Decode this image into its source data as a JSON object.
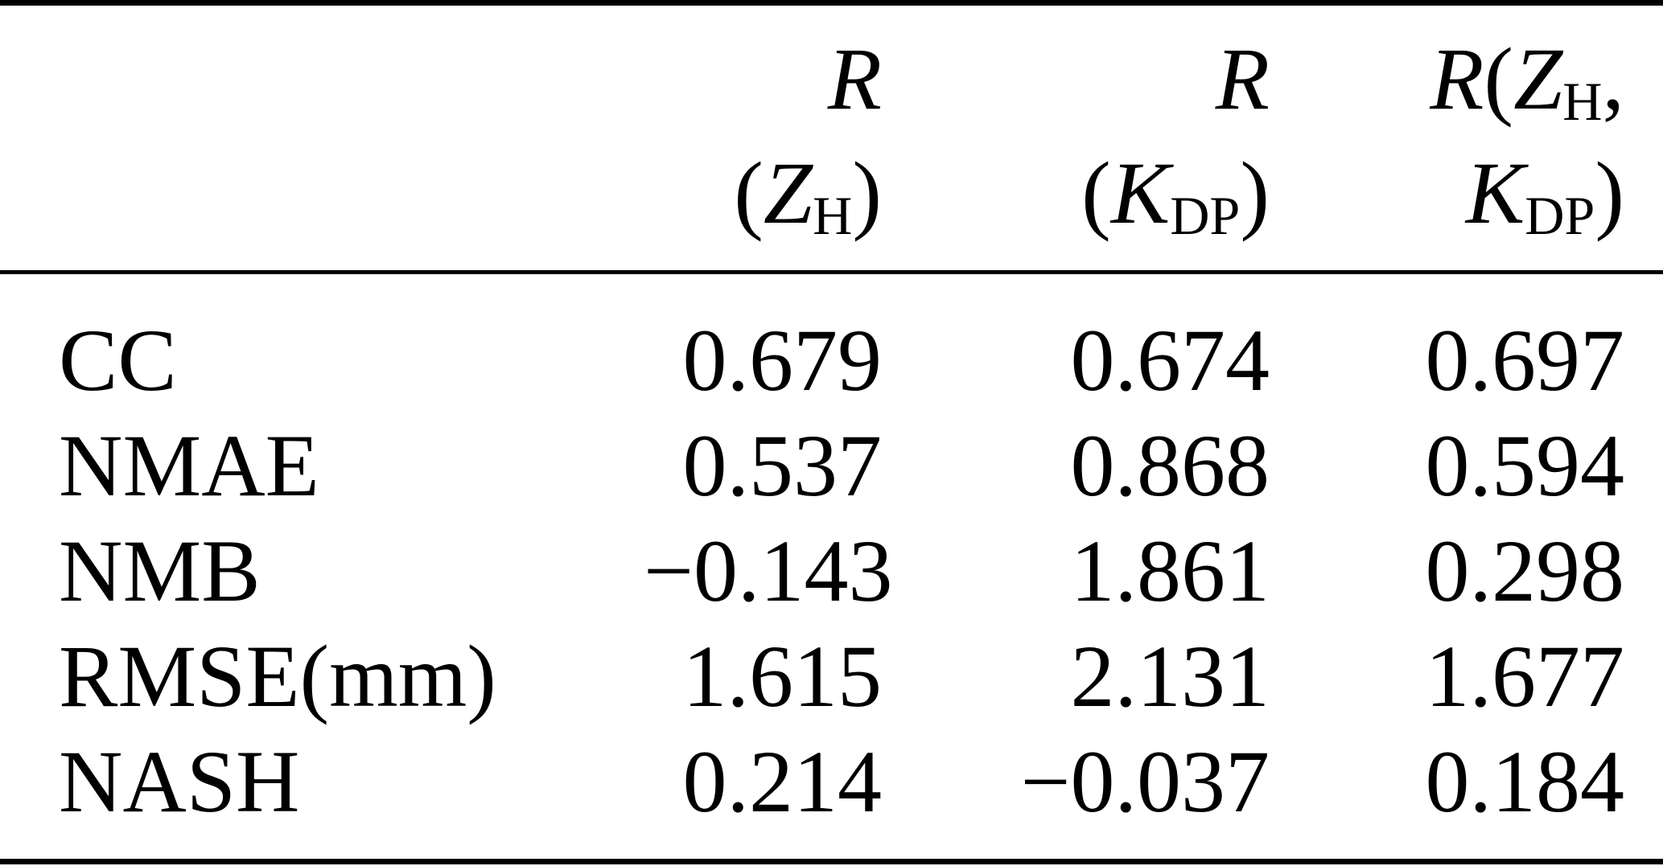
{
  "page": {
    "background_color": "#ffffff",
    "text_color": "#000000",
    "rule_color": "#000000"
  },
  "table": {
    "columns": [
      {
        "name": "R(ZH)",
        "line1": [
          {
            "t": "R",
            "s": "i"
          }
        ],
        "line2": [
          {
            "t": "("
          },
          {
            "t": "Z",
            "s": "i"
          },
          {
            "t": "H",
            "s": "sub"
          },
          {
            "t": ")"
          }
        ]
      },
      {
        "name": "R(KDP)",
        "line1": [
          {
            "t": "R",
            "s": "i"
          }
        ],
        "line2": [
          {
            "t": "("
          },
          {
            "t": "K",
            "s": "i"
          },
          {
            "t": "DP",
            "s": "sub"
          },
          {
            "t": ")"
          }
        ]
      },
      {
        "name": "R(ZH,KDP)",
        "line1": [
          {
            "t": "R",
            "s": "i"
          },
          {
            "t": "("
          },
          {
            "t": "Z",
            "s": "i"
          },
          {
            "t": "H",
            "s": "sub"
          },
          {
            "t": ","
          }
        ],
        "line2": [
          {
            "t": "K",
            "s": "i"
          },
          {
            "t": "DP",
            "s": "sub"
          },
          {
            "t": ")"
          }
        ]
      }
    ],
    "rows": [
      {
        "metric": "CC",
        "values": [
          "0.679",
          "0.674",
          "0.697"
        ]
      },
      {
        "metric": "NMAE",
        "values": [
          "0.537",
          "0.868",
          "0.594"
        ]
      },
      {
        "metric": "NMB",
        "values": [
          "−0.143",
          "1.861",
          "0.298"
        ]
      },
      {
        "metric": "RMSE(mm)",
        "values": [
          "1.615",
          "2.131",
          "1.677"
        ]
      },
      {
        "metric": "NASH",
        "values": [
          "0.214",
          "−0.037",
          "0.184"
        ]
      }
    ]
  },
  "chart_data": {
    "type": "table",
    "columns": [
      "",
      "R(Z_H)",
      "R(K_DP)",
      "R(Z_H, K_DP)"
    ],
    "rows": [
      [
        "CC",
        0.679,
        0.674,
        0.697
      ],
      [
        "NMAE",
        0.537,
        0.868,
        0.594
      ],
      [
        "NMB",
        -0.143,
        1.861,
        0.298
      ],
      [
        "RMSE(mm)",
        1.615,
        2.131,
        1.677
      ],
      [
        "NASH",
        0.214,
        -0.037,
        0.184
      ]
    ]
  }
}
